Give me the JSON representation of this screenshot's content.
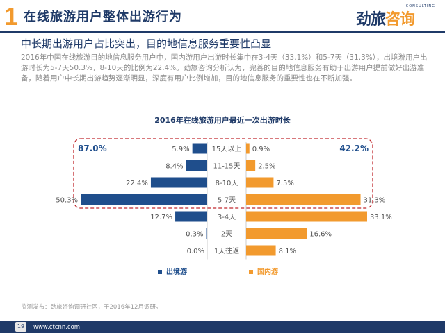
{
  "page": {
    "section_number": "1",
    "title": "在线旅游用户整体出游行为",
    "logo_text_main": "劲旅",
    "logo_text_accent": "咨询",
    "logo_text_en": "CONSULTING",
    "subtitle": "中长期出游用户占比突出，目的地信息服务重要性凸显",
    "body": "2016年中国在线旅游目的地信息服务用户中，国内游用户出游时长集中在3-4天（33.1%）和5-7天（31.3%），出境游用户出游时长为5-7天50.3%，8-10天的比例为22.4%。劲旅咨询分析认为，完善的目的地信息服务有助于出游用户提前做好出游准备，随着用户中长期出游趋势逐渐明显，深度有用户比例增加，目的地信息服务的重要性也在不断加强。",
    "footnote": "监测发布：劲旅咨询调研社区，于2016年12月调研。",
    "page_number": "19",
    "website": "www.ctcnn.com"
  },
  "colors": {
    "outbound": "#1f4e8c",
    "domestic": "#f29a2e",
    "navy": "#1f3a68",
    "highlight_border": "#c0282d"
  },
  "chart_data": {
    "type": "bar",
    "orientation": "horizontal-butterfly",
    "title": "2016年在线旅游用户最近一次出游时长",
    "categories": [
      "15天以上",
      "11-15天",
      "8-10天",
      "5-7天",
      "3-4天",
      "2天",
      "1天往返"
    ],
    "series": [
      {
        "name": "出境游",
        "values": [
          5.9,
          8.4,
          22.4,
          50.3,
          12.7,
          0.3,
          0.0
        ],
        "labels": [
          "5.9%",
          "8.4%",
          "22.4%",
          "50.3%",
          "12.7%",
          "0.3%",
          "0.0%"
        ]
      },
      {
        "name": "国内游",
        "values": [
          0.9,
          2.5,
          7.5,
          31.3,
          33.1,
          16.6,
          8.1
        ],
        "labels": [
          "0.9%",
          "2.5%",
          "7.5%",
          "31.3%",
          "33.1%",
          "16.6%",
          "8.1%"
        ]
      }
    ],
    "annotations": {
      "outbound_total": "87.0%",
      "domestic_total": "42.2%",
      "highlighted_categories": [
        "15天以上",
        "11-15天",
        "8-10天",
        "5-7天"
      ]
    },
    "legend": "bottom"
  }
}
